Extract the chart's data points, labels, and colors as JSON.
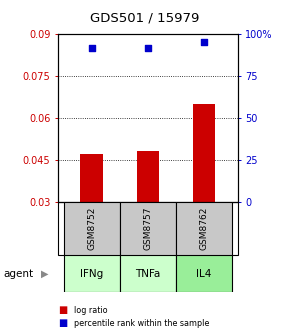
{
  "title": "GDS501 / 15979",
  "samples": [
    "GSM8752",
    "GSM8757",
    "GSM8762"
  ],
  "agents": [
    "IFNg",
    "TNFa",
    "IL4"
  ],
  "bar_values": [
    0.047,
    0.048,
    0.065
  ],
  "bar_baseline": 0.03,
  "scatter_values": [
    0.085,
    0.085,
    0.087
  ],
  "ylim_left": [
    0.03,
    0.09
  ],
  "ylim_right": [
    0,
    100
  ],
  "yticks_left": [
    0.03,
    0.045,
    0.06,
    0.075,
    0.09
  ],
  "yticks_right": [
    0,
    25,
    50,
    75,
    100
  ],
  "ytick_labels_left": [
    "0.03",
    "0.045",
    "0.06",
    "0.075",
    "0.09"
  ],
  "ytick_labels_right": [
    "0",
    "25",
    "50",
    "75",
    "100%"
  ],
  "grid_ticks": [
    0.045,
    0.06,
    0.075
  ],
  "bar_color": "#cc0000",
  "scatter_color": "#0000cc",
  "agent_colors": [
    "#ccffcc",
    "#ccffcc",
    "#99ee99"
  ],
  "sample_bg_color": "#c8c8c8",
  "legend_items": [
    "log ratio",
    "percentile rank within the sample"
  ],
  "legend_colors": [
    "#cc0000",
    "#0000cc"
  ],
  "x_positions": [
    0,
    1,
    2
  ]
}
